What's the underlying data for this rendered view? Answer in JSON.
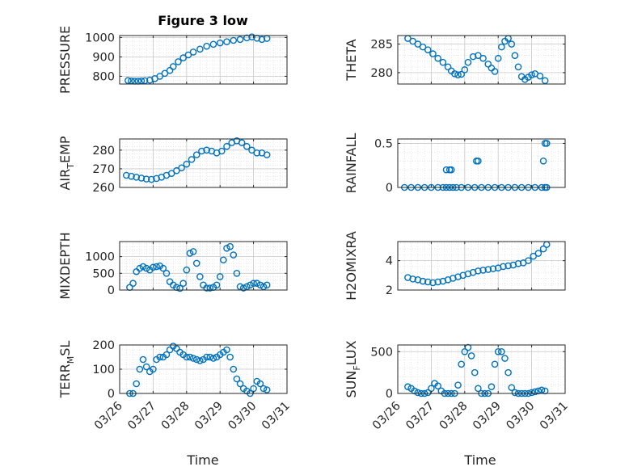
{
  "figure": {
    "title": "Figure 3 low",
    "xlabel_left": "Time",
    "xlabel_right": "Time",
    "xticks": [
      "03/26",
      "03/27",
      "03/28",
      "03/29",
      "03/30",
      "03/31"
    ],
    "marker_color": "#0072BD",
    "grid": true,
    "minor_grid": true
  },
  "chart_data": [
    {
      "type": "scatter",
      "name": "pressure",
      "ylabel": "PRESSURE",
      "ylim": [
        760,
        1010
      ],
      "yticks": [
        800,
        900,
        1000
      ],
      "x": [
        26.25,
        26.35,
        26.45,
        26.55,
        26.65,
        26.75,
        26.9,
        27.05,
        27.2,
        27.35,
        27.5,
        27.6,
        27.75,
        27.9,
        28.05,
        28.2,
        28.4,
        28.6,
        28.8,
        29.0,
        29.2,
        29.4,
        29.6,
        29.8,
        29.95,
        30.1,
        30.25,
        30.4
      ],
      "y": [
        778,
        776,
        775,
        775,
        776,
        777,
        780,
        788,
        800,
        815,
        830,
        850,
        875,
        895,
        910,
        925,
        940,
        955,
        965,
        972,
        978,
        985,
        990,
        998,
        1003,
        996,
        990,
        995
      ]
    },
    {
      "type": "scatter",
      "name": "theta",
      "ylabel": "THETA",
      "ylim": [
        278,
        286.5
      ],
      "yticks": [
        280,
        285
      ],
      "x": [
        26.3,
        26.45,
        26.6,
        26.75,
        26.9,
        27.05,
        27.2,
        27.35,
        27.5,
        27.6,
        27.7,
        27.8,
        27.9,
        28.0,
        28.1,
        28.25,
        28.4,
        28.55,
        28.7,
        28.8,
        28.9,
        29.0,
        29.1,
        29.2,
        29.3,
        29.4,
        29.5,
        29.6,
        29.7,
        29.8,
        29.9,
        30.0,
        30.1,
        30.25,
        30.4
      ],
      "y": [
        286,
        285.5,
        285,
        284.5,
        284,
        283.3,
        282.5,
        281.8,
        281,
        280.3,
        279.8,
        279.6,
        279.7,
        280.5,
        281.8,
        282.8,
        283,
        282.5,
        281.5,
        280.8,
        280.2,
        282.5,
        284.5,
        285.5,
        286,
        285,
        283,
        281,
        279.3,
        278.8,
        279.2,
        279.6,
        279.8,
        279.4,
        278.6
      ]
    },
    {
      "type": "scatter",
      "name": "air_temp",
      "ylabel": "AIR_TEMP",
      "ylim": [
        260,
        286
      ],
      "yticks": [
        260,
        270,
        280
      ],
      "x": [
        26.2,
        26.35,
        26.5,
        26.65,
        26.8,
        26.95,
        27.1,
        27.25,
        27.4,
        27.55,
        27.7,
        27.85,
        28.0,
        28.15,
        28.3,
        28.45,
        28.6,
        28.75,
        28.9,
        29.05,
        29.2,
        29.35,
        29.5,
        29.65,
        29.8,
        29.95,
        30.1,
        30.25,
        30.4
      ],
      "y": [
        266.5,
        266,
        265.5,
        265,
        264.5,
        264.3,
        264.8,
        265.5,
        266.5,
        267.5,
        269,
        270.5,
        272.5,
        275,
        277.5,
        279.5,
        280,
        279.5,
        278.5,
        279.5,
        282,
        284,
        285,
        284,
        282,
        280,
        278.5,
        278.5,
        277.5
      ]
    },
    {
      "type": "scatter",
      "name": "rainfall",
      "ylabel": "RAINFALL",
      "ylim": [
        0,
        0.55
      ],
      "yticks": [
        0,
        0.5
      ],
      "x": [
        26.2,
        26.4,
        26.6,
        26.8,
        27.0,
        27.2,
        27.35,
        27.45,
        27.55,
        27.65,
        27.75,
        27.9,
        28.1,
        28.3,
        28.5,
        28.7,
        28.9,
        29.1,
        29.3,
        29.5,
        29.7,
        29.9,
        30.1,
        30.3,
        30.4,
        30.45,
        27.45,
        27.55,
        27.6,
        28.35,
        28.4,
        30.35,
        30.4,
        30.45
      ],
      "y": [
        0,
        0,
        0,
        0,
        0,
        0,
        0,
        0,
        0,
        0,
        0,
        0,
        0,
        0,
        0,
        0,
        0,
        0,
        0,
        0,
        0,
        0,
        0,
        0,
        0,
        0,
        0.2,
        0.2,
        0.2,
        0.3,
        0.3,
        0.3,
        0.5,
        0.5
      ]
    },
    {
      "type": "scatter",
      "name": "mixdepth",
      "ylabel": "MIXDEPTH",
      "ylim": [
        0,
        1450
      ],
      "yticks": [
        0,
        500,
        1000
      ],
      "x": [
        26.3,
        26.4,
        26.5,
        26.6,
        26.7,
        26.8,
        26.9,
        27.0,
        27.1,
        27.2,
        27.3,
        27.4,
        27.5,
        27.6,
        27.7,
        27.8,
        27.9,
        28.0,
        28.1,
        28.2,
        28.3,
        28.4,
        28.5,
        28.6,
        28.7,
        28.8,
        28.9,
        29.0,
        29.1,
        29.2,
        29.3,
        29.4,
        29.5,
        29.6,
        29.7,
        29.8,
        29.9,
        30.0,
        30.1,
        30.2,
        30.3,
        30.4
      ],
      "y": [
        80,
        200,
        550,
        650,
        700,
        650,
        600,
        680,
        700,
        720,
        650,
        500,
        250,
        150,
        80,
        50,
        200,
        600,
        1100,
        1150,
        800,
        400,
        150,
        60,
        60,
        80,
        150,
        400,
        900,
        1250,
        1300,
        1050,
        500,
        100,
        60,
        100,
        150,
        200,
        200,
        150,
        100,
        150
      ]
    },
    {
      "type": "scatter",
      "name": "h2omixra",
      "ylabel": "H2OMIXRA",
      "ylim": [
        2,
        5.3
      ],
      "yticks": [
        2,
        4
      ],
      "x": [
        26.3,
        26.45,
        26.6,
        26.75,
        26.9,
        27.05,
        27.2,
        27.35,
        27.5,
        27.65,
        27.8,
        27.95,
        28.1,
        28.25,
        28.4,
        28.55,
        28.7,
        28.85,
        29.0,
        29.15,
        29.3,
        29.45,
        29.6,
        29.75,
        29.9,
        30.05,
        30.2,
        30.35,
        30.45
      ],
      "y": [
        2.85,
        2.75,
        2.7,
        2.6,
        2.55,
        2.5,
        2.55,
        2.6,
        2.7,
        2.8,
        2.9,
        3.0,
        3.1,
        3.2,
        3.3,
        3.35,
        3.4,
        3.45,
        3.5,
        3.6,
        3.65,
        3.7,
        3.8,
        3.85,
        4.0,
        4.3,
        4.5,
        4.8,
        5.1
      ]
    },
    {
      "type": "scatter",
      "name": "terr_msl",
      "ylabel": "TERR_MSL",
      "ylim": [
        0,
        200
      ],
      "yticks": [
        0,
        100,
        200
      ],
      "x": [
        26.3,
        26.4,
        26.5,
        26.6,
        26.7,
        26.8,
        26.9,
        27.0,
        27.1,
        27.2,
        27.3,
        27.4,
        27.5,
        27.6,
        27.7,
        27.8,
        27.9,
        28.0,
        28.1,
        28.2,
        28.3,
        28.4,
        28.5,
        28.6,
        28.7,
        28.8,
        28.9,
        29.0,
        29.1,
        29.2,
        29.3,
        29.4,
        29.5,
        29.6,
        29.7,
        29.8,
        29.9,
        30.0,
        30.1,
        30.2,
        30.3,
        30.4
      ],
      "y": [
        0,
        0,
        40,
        100,
        140,
        110,
        90,
        100,
        140,
        150,
        150,
        160,
        180,
        195,
        185,
        170,
        160,
        150,
        150,
        145,
        140,
        135,
        140,
        150,
        150,
        145,
        150,
        160,
        170,
        180,
        150,
        100,
        60,
        40,
        20,
        10,
        0,
        20,
        50,
        40,
        20,
        15
      ]
    },
    {
      "type": "scatter",
      "name": "sun_flux",
      "ylabel": "SUN_FLUX",
      "ylim": [
        0,
        580
      ],
      "yticks": [
        0,
        500
      ],
      "x": [
        26.3,
        26.4,
        26.5,
        26.6,
        26.7,
        26.8,
        26.9,
        27.0,
        27.1,
        27.2,
        27.3,
        27.4,
        27.5,
        27.6,
        27.7,
        27.8,
        27.9,
        28.0,
        28.1,
        28.2,
        28.3,
        28.4,
        28.5,
        28.6,
        28.7,
        28.8,
        28.9,
        29.0,
        29.1,
        29.2,
        29.3,
        29.4,
        29.5,
        29.6,
        29.7,
        29.8,
        29.9,
        30.0,
        30.1,
        30.2,
        30.3,
        30.4
      ],
      "y": [
        80,
        60,
        30,
        10,
        0,
        0,
        10,
        60,
        120,
        90,
        30,
        0,
        0,
        0,
        0,
        100,
        350,
        500,
        550,
        450,
        250,
        60,
        0,
        0,
        0,
        80,
        350,
        500,
        500,
        420,
        250,
        70,
        10,
        0,
        0,
        0,
        0,
        10,
        20,
        30,
        40,
        30
      ]
    }
  ]
}
